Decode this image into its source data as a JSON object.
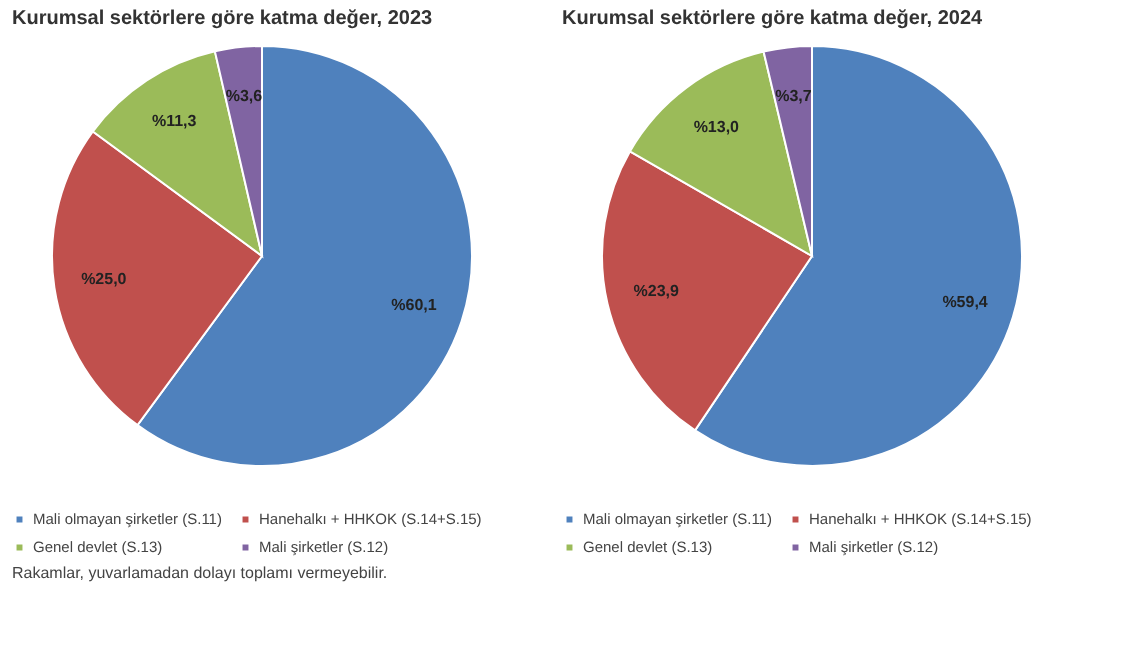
{
  "chart_data": [
    {
      "type": "pie",
      "title": "Kurumsal sektörlere göre katma değer, 2023",
      "categories": [
        "Mali olmayan şirketler (S.11)",
        "Hanehalkı + HHKOK (S.14+S.15)",
        "Genel devlet (S.13)",
        "Mali şirketler (S.12)"
      ],
      "values": [
        60.1,
        25.0,
        11.3,
        3.6
      ],
      "value_labels": [
        "%60,1",
        "%25,0",
        "%11,3",
        "%3,6"
      ],
      "colors": [
        "#4f81bd",
        "#c0504d",
        "#9bbb59",
        "#8064a2"
      ],
      "legend": "bottom",
      "annotations": [
        "Rakamlar, yuvarlamadan dolayı toplamı vermeyebilir."
      ]
    },
    {
      "type": "pie",
      "title": "Kurumsal sektörlere göre katma değer, 2024",
      "categories": [
        "Mali olmayan şirketler (S.11)",
        "Hanehalkı + HHKOK (S.14+S.15)",
        "Genel devlet (S.13)",
        "Mali şirketler (S.12)"
      ],
      "values": [
        59.4,
        23.9,
        13.0,
        3.7
      ],
      "value_labels": [
        "%59,4",
        "%23,9",
        "%13,0",
        "%3,7"
      ],
      "colors": [
        "#4f81bd",
        "#c0504d",
        "#9bbb59",
        "#8064a2"
      ],
      "legend": "bottom"
    }
  ]
}
